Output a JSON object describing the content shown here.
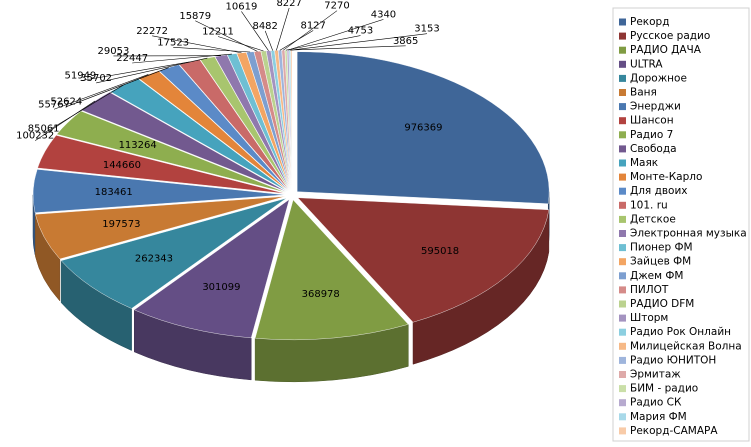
{
  "chart_data": {
    "type": "pie3d",
    "categories": [
      "Рекорд",
      "Русское радио",
      "РАДИО ДАЧА",
      "ULTRA",
      "Дорожное",
      "Ваня",
      "Энерджи",
      "Шансон",
      "Радио 7",
      "Свобода",
      "Маяк",
      "Монте-Карло",
      "Для двоих",
      "101. ru",
      "Детское",
      "Электронная музыка",
      "Пионер ФМ",
      "Зайцев ФМ",
      "Джем ФМ",
      "ПИЛОТ",
      "РАДИО DFM",
      "Шторм",
      "Радио Рок Онлайн",
      "Милицейская Волна",
      "Радио ЮНИТОН",
      "Эрмитаж",
      "БИМ - радио",
      "Радио СК",
      "Мария ФМ",
      "Рекорд-САМАРА"
    ],
    "values": [
      976369,
      595018,
      368978,
      301099,
      262343,
      197573,
      183461,
      144660,
      113264,
      100232,
      85061,
      55767,
      52624,
      51949,
      35702,
      29053,
      22447,
      22272,
      17523,
      15879,
      12211,
      10619,
      8482,
      8227,
      8127,
      7270,
      4753,
      4340,
      3865,
      3153
    ],
    "colors": [
      "#3f6698",
      "#8e3533",
      "#809c43",
      "#644e85",
      "#36879d",
      "#c87a33",
      "#4a78b0",
      "#b2423f",
      "#8eae4f",
      "#72598f",
      "#46a3bd",
      "#e3853a",
      "#5b8ac7",
      "#c96a68",
      "#a8c56e",
      "#8f78ad",
      "#6ebfd3",
      "#f3a563",
      "#7d9fd0",
      "#d58b89",
      "#bbd28f",
      "#a493c0",
      "#8ccfe0",
      "#f6b987",
      "#9fb5dc",
      "#deaaa9",
      "#cadfa8",
      "#b7aacf",
      "#a8d9e9",
      "#f8cba8"
    ],
    "legend": "right"
  }
}
